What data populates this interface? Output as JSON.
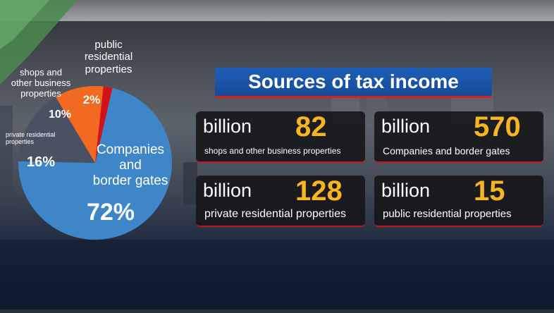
{
  "chart_data": {
    "type": "pie",
    "title": "Sources of tax income",
    "unit": "billion",
    "categories": [
      "Companies and border gates",
      "private residential properties",
      "shops and other business properties",
      "public residential properties"
    ],
    "values": [
      570,
      128,
      82,
      15
    ],
    "percentages": [
      72,
      16,
      10,
      2
    ],
    "colors": [
      "#3f86c8",
      "#4a5163",
      "#f26a21",
      "#d1121b"
    ]
  },
  "pie_labels": {
    "companies_line1": "Companies",
    "companies_line2": "and",
    "companies_line3": "border gates",
    "companies_pct": "72%",
    "private_name": "private residential properties",
    "private_pct": "16%",
    "shops_line1": "shops and",
    "shops_line2": "other business",
    "shops_line3": "properties",
    "shops_pct": "10%",
    "public_line1": "public",
    "public_line2": "residential",
    "public_line3": "properties",
    "public_pct": "2%"
  },
  "panels": [
    {
      "unit": "billion",
      "value": "82",
      "label": "shops and other business properties"
    },
    {
      "unit": "billion",
      "value": "570",
      "label": "Companies and border gates"
    },
    {
      "unit": "billion",
      "value": "128",
      "label": "private residential properties"
    },
    {
      "unit": "billion",
      "value": "15",
      "label": "public residential  properties"
    }
  ]
}
